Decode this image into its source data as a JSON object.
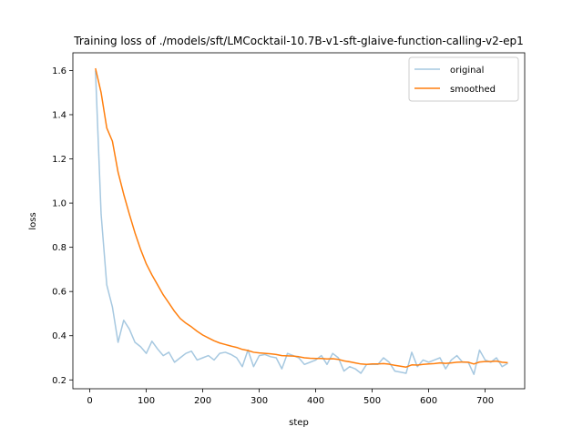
{
  "chart_data": {
    "type": "line",
    "title": "Training loss of ./models/sft/LMCocktail-10.7B-v1-sft-glaive-function-calling-v2-ep1",
    "xlabel": "step",
    "ylabel": "loss",
    "xlim": [
      -30,
      770
    ],
    "ylim": [
      0.16,
      1.68
    ],
    "xticks": [
      0,
      100,
      200,
      300,
      400,
      500,
      600,
      700
    ],
    "yticks": [
      0.2,
      0.4,
      0.6,
      0.8,
      1.0,
      1.2,
      1.4,
      1.6
    ],
    "ytick_labels": [
      "0.2",
      "0.4",
      "0.6",
      "0.8",
      "1.0",
      "1.2",
      "1.4",
      "1.6"
    ],
    "grid": false,
    "legend": "top-right",
    "series": [
      {
        "name": "original",
        "color": "#a6c8e0",
        "x": [
          10,
          20,
          30,
          40,
          50,
          60,
          70,
          80,
          90,
          100,
          110,
          120,
          130,
          140,
          150,
          160,
          170,
          180,
          190,
          200,
          210,
          220,
          230,
          240,
          250,
          260,
          270,
          280,
          290,
          300,
          310,
          320,
          330,
          340,
          350,
          360,
          370,
          380,
          390,
          400,
          410,
          420,
          430,
          440,
          450,
          460,
          470,
          480,
          490,
          500,
          510,
          520,
          530,
          540,
          550,
          560,
          570,
          580,
          590,
          600,
          610,
          620,
          630,
          640,
          650,
          660,
          670,
          680,
          690,
          700,
          710,
          720,
          730,
          740
        ],
        "y": [
          1.6,
          0.95,
          0.63,
          0.53,
          0.37,
          0.47,
          0.43,
          0.37,
          0.35,
          0.32,
          0.375,
          0.34,
          0.31,
          0.325,
          0.28,
          0.3,
          0.32,
          0.33,
          0.29,
          0.3,
          0.31,
          0.29,
          0.32,
          0.325,
          0.315,
          0.3,
          0.26,
          0.335,
          0.26,
          0.31,
          0.315,
          0.305,
          0.3,
          0.25,
          0.32,
          0.31,
          0.3,
          0.27,
          0.28,
          0.29,
          0.31,
          0.27,
          0.32,
          0.3,
          0.24,
          0.26,
          0.25,
          0.23,
          0.27,
          0.27,
          0.27,
          0.3,
          0.28,
          0.24,
          0.235,
          0.23,
          0.325,
          0.26,
          0.29,
          0.28,
          0.29,
          0.3,
          0.25,
          0.29,
          0.31,
          0.28,
          0.28,
          0.225,
          0.335,
          0.29,
          0.28,
          0.3,
          0.26,
          0.275
        ]
      },
      {
        "name": "smoothed",
        "color": "#ff7f0e",
        "x": [
          10,
          20,
          30,
          40,
          50,
          60,
          70,
          80,
          90,
          100,
          110,
          120,
          130,
          140,
          150,
          160,
          170,
          180,
          190,
          200,
          210,
          220,
          230,
          240,
          250,
          260,
          270,
          280,
          290,
          300,
          310,
          320,
          330,
          340,
          350,
          360,
          370,
          380,
          390,
          400,
          410,
          420,
          430,
          440,
          450,
          460,
          470,
          480,
          490,
          500,
          510,
          520,
          530,
          540,
          550,
          560,
          570,
          580,
          590,
          600,
          610,
          620,
          630,
          640,
          650,
          660,
          670,
          680,
          690,
          700,
          710,
          720,
          730,
          740
        ],
        "y": [
          1.61,
          1.5,
          1.34,
          1.28,
          1.14,
          1.04,
          0.95,
          0.865,
          0.79,
          0.725,
          0.675,
          0.63,
          0.585,
          0.548,
          0.51,
          0.478,
          0.457,
          0.44,
          0.42,
          0.403,
          0.39,
          0.377,
          0.367,
          0.36,
          0.353,
          0.347,
          0.338,
          0.333,
          0.325,
          0.322,
          0.32,
          0.318,
          0.315,
          0.31,
          0.309,
          0.308,
          0.305,
          0.3,
          0.298,
          0.297,
          0.297,
          0.295,
          0.296,
          0.293,
          0.286,
          0.282,
          0.277,
          0.272,
          0.27,
          0.272,
          0.272,
          0.274,
          0.271,
          0.266,
          0.262,
          0.258,
          0.268,
          0.267,
          0.27,
          0.272,
          0.274,
          0.277,
          0.275,
          0.277,
          0.28,
          0.281,
          0.28,
          0.272,
          0.281,
          0.283,
          0.283,
          0.285,
          0.28,
          0.278
        ]
      }
    ]
  }
}
